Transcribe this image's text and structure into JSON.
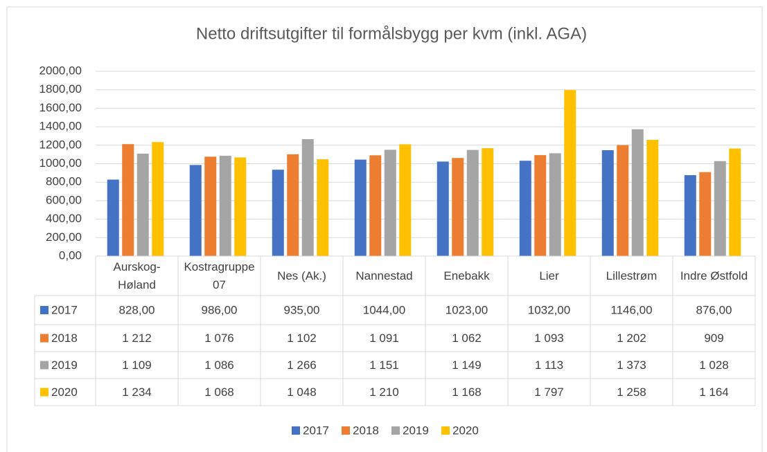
{
  "chart_data": {
    "type": "bar",
    "title": "Netto driftsutgifter til formålsbygg per kvm (inkl. AGA)",
    "categories": [
      "Aurskog-Høland",
      "Kostragruppe 07",
      "Nes (Ak.)",
      "Nannestad",
      "Enebakk",
      "Lier",
      "Lillestrøm",
      "Indre Østfold"
    ],
    "series": [
      {
        "name": "2017",
        "color": "#4472c4",
        "values": [
          828,
          986,
          935,
          1044,
          1023,
          1032,
          1146,
          876
        ],
        "value_labels": [
          "828,00",
          "986,00",
          "935,00",
          "1044,00",
          "1023,00",
          "1032,00",
          "1146,00",
          "876,00"
        ]
      },
      {
        "name": "2018",
        "color": "#ed7d31",
        "values": [
          1212,
          1076,
          1102,
          1091,
          1062,
          1093,
          1202,
          909
        ],
        "value_labels": [
          "1 212",
          "1 076",
          "1 102",
          "1 091",
          "1 062",
          "1 093",
          "1 202",
          "909"
        ]
      },
      {
        "name": "2019",
        "color": "#a5a5a5",
        "values": [
          1109,
          1086,
          1266,
          1151,
          1149,
          1113,
          1373,
          1028
        ],
        "value_labels": [
          "1 109",
          "1 086",
          "1 266",
          "1 151",
          "1 149",
          "1 113",
          "1 373",
          "1 028"
        ]
      },
      {
        "name": "2020",
        "color": "#ffc000",
        "values": [
          1234,
          1068,
          1048,
          1210,
          1168,
          1797,
          1258,
          1164
        ],
        "value_labels": [
          "1 234",
          "1 068",
          "1 048",
          "1 210",
          "1 168",
          "1 797",
          "1 258",
          "1 164"
        ]
      }
    ],
    "ylim": [
      0,
      2000
    ],
    "yticks": [
      {
        "value": 0,
        "label": "0,00"
      },
      {
        "value": 200,
        "label": "200,00"
      },
      {
        "value": 400,
        "label": "400,00"
      },
      {
        "value": 600,
        "label": "600,00"
      },
      {
        "value": 800,
        "label": "800,00"
      },
      {
        "value": 1000,
        "label": "1000,00"
      },
      {
        "value": 1200,
        "label": "1200,00"
      },
      {
        "value": 1400,
        "label": "1400,00"
      },
      {
        "value": 1600,
        "label": "1600,00"
      },
      {
        "value": 1800,
        "label": "1800,00"
      },
      {
        "value": 2000,
        "label": "2000,00"
      }
    ],
    "grid": true,
    "legend": "bottom"
  }
}
